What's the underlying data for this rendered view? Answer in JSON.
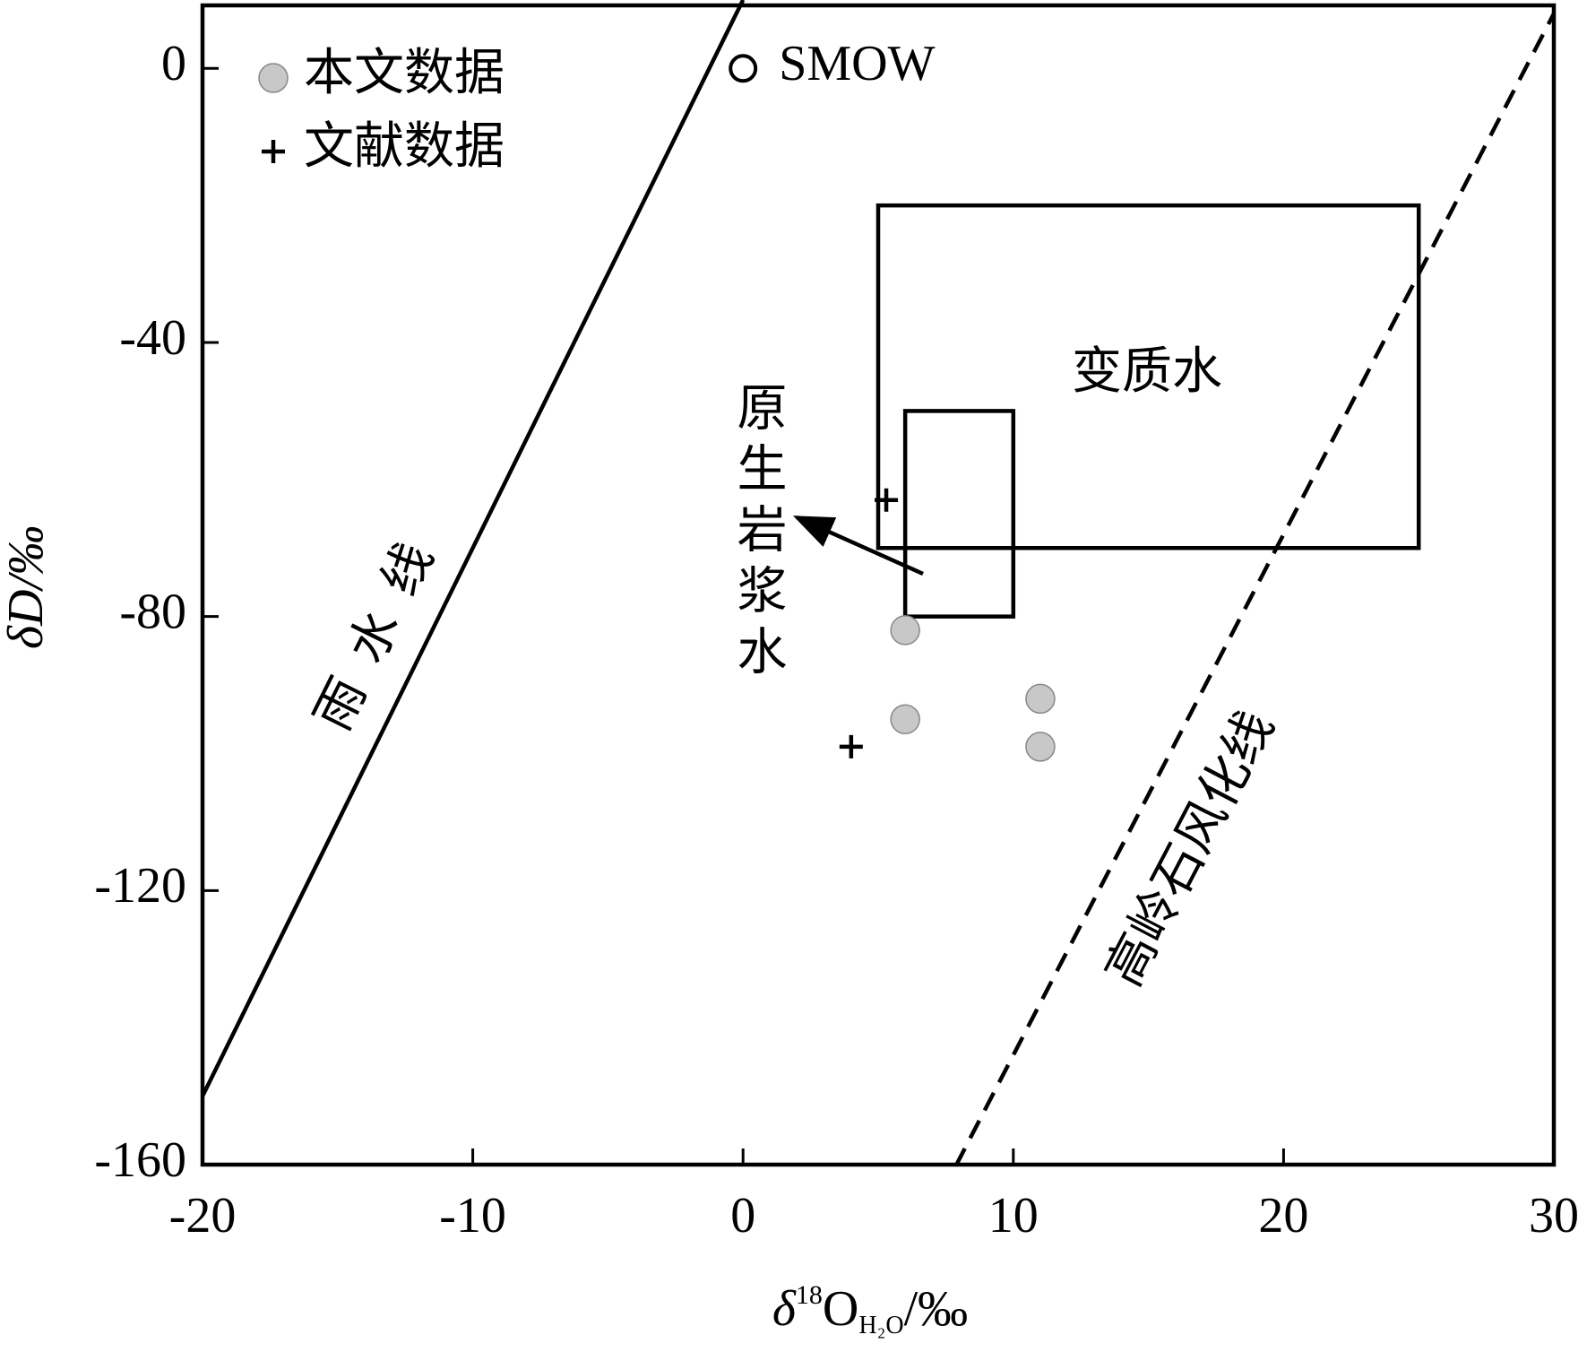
{
  "chart_data": {
    "type": "scatter",
    "xlabel": {
      "delta": "δ",
      "sup": "18",
      "base": "O",
      "sub": "H₂O",
      "unit": "/‰"
    },
    "ylabel": "δD/‰",
    "xlim": [
      -20,
      30
    ],
    "xticks": [
      -20,
      -10,
      0,
      10,
      20,
      30
    ],
    "ylim": [
      -160,
      9.2
    ],
    "yticks": [
      0,
      -40,
      -80,
      -120,
      -160
    ],
    "series": [
      {
        "name": "本文数据",
        "color": "#c8c8c8",
        "marker": "filled-circle",
        "x": [
          6,
          6,
          11,
          11
        ],
        "values": [
          -82,
          -95,
          -92,
          -99
        ]
      },
      {
        "name": "文献数据",
        "color": "#000000",
        "marker": "cross",
        "x": [
          5.3,
          4
        ],
        "values": [
          -63,
          -99
        ]
      },
      {
        "name": "SMOW",
        "color": "#000000",
        "marker": "open-circle",
        "x": [
          0
        ],
        "values": [
          0
        ]
      }
    ],
    "lines": [
      {
        "name": "雨水线",
        "style": "solid",
        "x": [
          -20,
          0
        ],
        "values": [
          -150,
          10
        ]
      },
      {
        "name": "高岭石风化线",
        "style": "dashed",
        "x": [
          7.87,
          30
        ],
        "values": [
          -160.2,
          8
        ]
      }
    ],
    "regions": [
      {
        "name": "变质水",
        "x": [
          5,
          25
        ],
        "values": [
          -20,
          -70
        ]
      },
      {
        "name": "原生岩浆水",
        "x": [
          6,
          10
        ],
        "values": [
          -50,
          -80
        ]
      }
    ]
  }
}
